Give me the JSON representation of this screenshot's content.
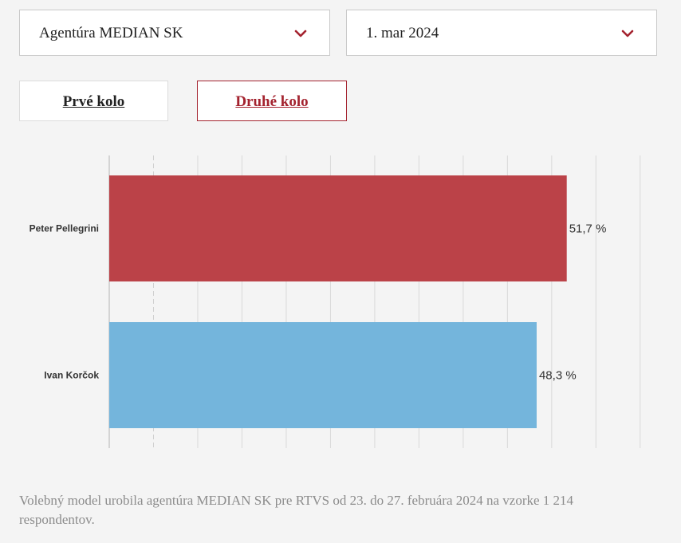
{
  "filters": {
    "agency": "Agentúra MEDIAN SK",
    "date": "1. mar 2024"
  },
  "tabs": [
    {
      "label": "Prvé kolo",
      "active": false
    },
    {
      "label": "Druhé kolo",
      "active": true
    }
  ],
  "icons": {
    "dropdown": "chevron-down-icon"
  },
  "colors": {
    "accent": "#a4232f",
    "pellegrini": "#bb4248",
    "korcok": "#74b5dc"
  },
  "chart_data": {
    "type": "bar",
    "orientation": "horizontal",
    "categories": [
      "Peter Pellegrini",
      "Ivan Korčok"
    ],
    "values": [
      51.7,
      48.3
    ],
    "value_labels": [
      "51,7 %",
      "48,3 %"
    ],
    "colors": [
      "#bb4248",
      "#74b5dc"
    ],
    "xlim": [
      0,
      62
    ],
    "grid": true,
    "reference_line": 5
  },
  "footnote": "Volebný model urobila agentúra MEDIAN SK pre RTVS od 23. do 27. februára 2024 na vzorke 1 214 respondentov."
}
